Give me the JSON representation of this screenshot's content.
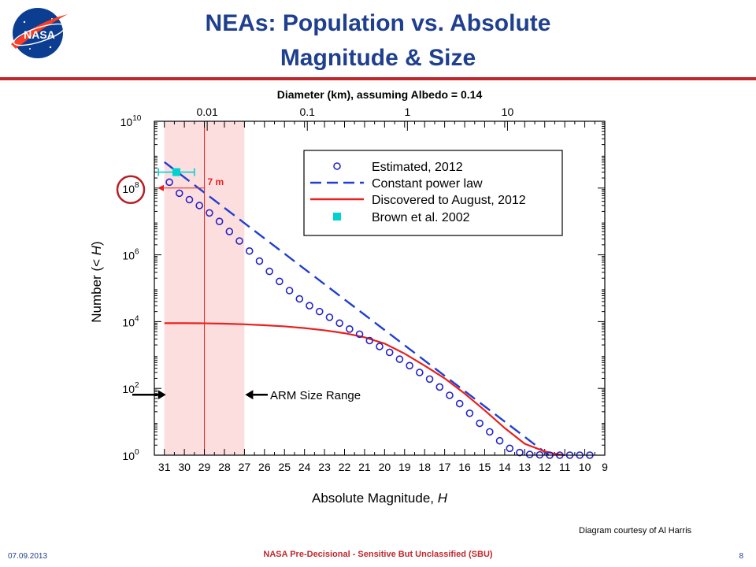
{
  "slide": {
    "title_line1": "NEAs: Population vs. Absolute",
    "title_line2": "Magnitude & Size",
    "logo_text": "NASA",
    "credit": "Diagram courtesy of Al Harris",
    "footer_date": "07.09.2013",
    "footer_center": "NASA Pre-Decisional - Sensitive But Unclassified (SBU)",
    "footer_page": "8",
    "colors": {
      "title": "#1f3f8f",
      "rule": "#c0272d",
      "estimated": "#2323c8",
      "power_law": "#1f3fd0",
      "discovered": "#e8201e",
      "brown": "#00d2d2",
      "arm_band": "#fcdede"
    }
  },
  "chart_data": {
    "type": "scatter",
    "xlabel_main": "Absolute Magnitude, ",
    "xlabel_var": "H",
    "ylabel_main": "Number  (< ",
    "ylabel_var": "H",
    "ylabel_end": ")",
    "top_axis_label": "Diameter (km), assuming Albedo = 0.14",
    "x_reversed": true,
    "xlim": [
      31.5,
      9
    ],
    "y_scale": "log",
    "ylim": [
      1,
      10000000000
    ],
    "x_ticks": [
      31,
      30,
      29,
      28,
      27,
      26,
      25,
      24,
      23,
      22,
      21,
      20,
      19,
      18,
      17,
      16,
      15,
      14,
      13,
      12,
      11,
      10,
      9
    ],
    "y_ticks": [
      {
        "value": 1,
        "base": "10",
        "exp": "0"
      },
      {
        "value": 100,
        "base": "10",
        "exp": "2"
      },
      {
        "value": 10000,
        "base": "10",
        "exp": "4"
      },
      {
        "value": 1000000,
        "base": "10",
        "exp": "6"
      },
      {
        "value": 100000000,
        "base": "10",
        "exp": "8"
      },
      {
        "value": 10000000000,
        "base": "10",
        "exp": "10"
      }
    ],
    "top_ticks": [
      {
        "label": "0.01",
        "h": 28.86
      },
      {
        "label": "0.1",
        "h": 23.86
      },
      {
        "label": "1",
        "h": 18.86
      },
      {
        "label": "10",
        "h": 13.86
      }
    ],
    "arm_size_range": [
      31,
      27
    ],
    "series": [
      {
        "name": "Estimated, 2012",
        "style": "circles",
        "x": [
          30.75,
          30.25,
          29.75,
          29.25,
          28.75,
          28.25,
          27.75,
          27.25,
          26.75,
          26.25,
          25.75,
          25.25,
          24.75,
          24.25,
          23.75,
          23.25,
          22.75,
          22.25,
          21.75,
          21.25,
          20.75,
          20.25,
          19.75,
          19.25,
          18.75,
          18.25,
          17.75,
          17.25,
          16.75,
          16.25,
          15.75,
          15.25,
          14.75,
          14.25,
          13.75,
          13.25,
          12.75,
          12.25,
          11.75,
          11.25,
          10.75,
          10.25,
          9.75
        ],
        "y": [
          150000000,
          70000000,
          45000000,
          30000000,
          18000000,
          10000000,
          5000000,
          2600000,
          1300000,
          650000,
          320000,
          160000,
          85000,
          48000,
          30000,
          20000,
          13500,
          9000,
          6000,
          4200,
          2700,
          1800,
          1200,
          750,
          480,
          300,
          190,
          110,
          62,
          35,
          18,
          9,
          5,
          2.7,
          1.6,
          1.2,
          1.05,
          1.02,
          1,
          1,
          1,
          1,
          1
        ]
      },
      {
        "name": "Constant power law",
        "style": "dashed",
        "x": [
          31,
          11.8
        ],
        "y": [
          600000000,
          1
        ]
      },
      {
        "name": "Discovered to August, 2012",
        "style": "solid",
        "x": [
          31,
          30,
          29,
          28,
          27,
          26,
          25,
          24,
          23,
          22,
          21,
          20,
          19,
          18,
          17,
          16,
          15,
          14,
          13,
          12,
          11.5,
          11
        ],
        "y": [
          9000,
          9000,
          8900,
          8700,
          8300,
          7800,
          7200,
          6400,
          5500,
          4500,
          3400,
          2200,
          1100,
          480,
          200,
          70,
          22,
          6.5,
          2.2,
          1.3,
          1.1,
          1
        ]
      },
      {
        "name": "Brown et al. 2002",
        "style": "square",
        "x": [
          30.4
        ],
        "y": [
          300000000
        ],
        "xerr": [
          0.9,
          0.9
        ]
      }
    ],
    "legend_position": "top-right",
    "annotations": {
      "arm_label": "ARM Size Range",
      "seven_m_label": "7 m",
      "seven_m_h": 29.0
    }
  }
}
